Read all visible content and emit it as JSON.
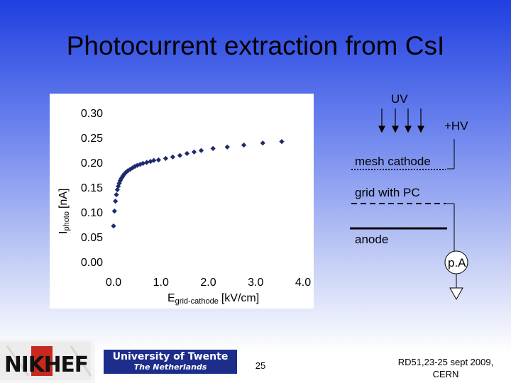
{
  "slide": {
    "title": "Photocurrent extraction from CsI",
    "page_number": "25",
    "conference_line1": "RD51,23-25 sept 2009,",
    "conference_line2": "CERN"
  },
  "logos": {
    "nikhef": "NIKHEF",
    "twente_line1": "University of Twente",
    "twente_line2": "The Netherlands"
  },
  "schematic": {
    "uv_label": "UV",
    "hv_label": "+HV",
    "mesh_label": "mesh cathode",
    "grid_label": "grid with PC",
    "anode_label": "anode",
    "meter_label": "p.A"
  },
  "chart_data": {
    "type": "scatter",
    "ylabel_main": "I",
    "ylabel_sub": "photo",
    "ylabel_unit": "[nA]",
    "xlabel_main": "E",
    "xlabel_sub": "grid-cathode",
    "xlabel_unit": "[kV/cm]",
    "xlim": [
      0.0,
      4.0
    ],
    "ylim": [
      0.0,
      0.3
    ],
    "x_ticks": [
      "0.0",
      "1.0",
      "2.0",
      "3.0",
      "4.0"
    ],
    "y_ticks": [
      "0.00",
      "0.05",
      "0.10",
      "0.15",
      "0.20",
      "0.25",
      "0.30"
    ],
    "x_tick_values": [
      0.0,
      1.0,
      2.0,
      3.0,
      4.0
    ],
    "y_tick_values": [
      0.0,
      0.05,
      0.1,
      0.15,
      0.2,
      0.25,
      0.3
    ],
    "marker_color": "#1c2a6e",
    "points": [
      [
        0.0,
        0.072
      ],
      [
        0.02,
        0.102
      ],
      [
        0.04,
        0.122
      ],
      [
        0.06,
        0.135
      ],
      [
        0.08,
        0.145
      ],
      [
        0.1,
        0.152
      ],
      [
        0.12,
        0.158
      ],
      [
        0.14,
        0.163
      ],
      [
        0.16,
        0.167
      ],
      [
        0.18,
        0.17
      ],
      [
        0.2,
        0.173
      ],
      [
        0.23,
        0.177
      ],
      [
        0.26,
        0.18
      ],
      [
        0.3,
        0.183
      ],
      [
        0.35,
        0.186
      ],
      [
        0.4,
        0.189
      ],
      [
        0.45,
        0.192
      ],
      [
        0.5,
        0.194
      ],
      [
        0.56,
        0.196
      ],
      [
        0.62,
        0.198
      ],
      [
        0.7,
        0.2
      ],
      [
        0.78,
        0.202
      ],
      [
        0.85,
        0.204
      ],
      [
        0.95,
        0.205
      ],
      [
        1.1,
        0.208
      ],
      [
        1.25,
        0.211
      ],
      [
        1.4,
        0.214
      ],
      [
        1.55,
        0.218
      ],
      [
        1.7,
        0.221
      ],
      [
        1.85,
        0.224
      ],
      [
        2.1,
        0.228
      ],
      [
        2.4,
        0.231
      ],
      [
        2.75,
        0.235
      ],
      [
        3.15,
        0.239
      ],
      [
        3.55,
        0.242
      ]
    ]
  }
}
